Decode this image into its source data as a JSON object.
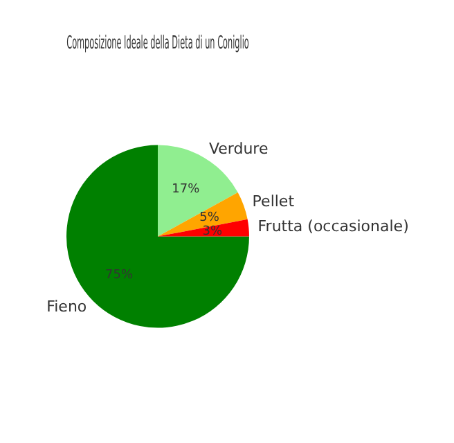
{
  "chart_data": {
    "type": "pie",
    "title": "Composizione Ideale della Dieta di un Coniglio",
    "categories": [
      "Fieno",
      "Verdure",
      "Pellet",
      "Frutta (occasionale)"
    ],
    "values": [
      75,
      17,
      5,
      3
    ],
    "colors": [
      "#008000",
      "#90ee90",
      "#ffa500",
      "#ff0000"
    ],
    "value_labels": [
      "75%",
      "17%",
      "5%",
      "3%"
    ],
    "legend": false
  }
}
